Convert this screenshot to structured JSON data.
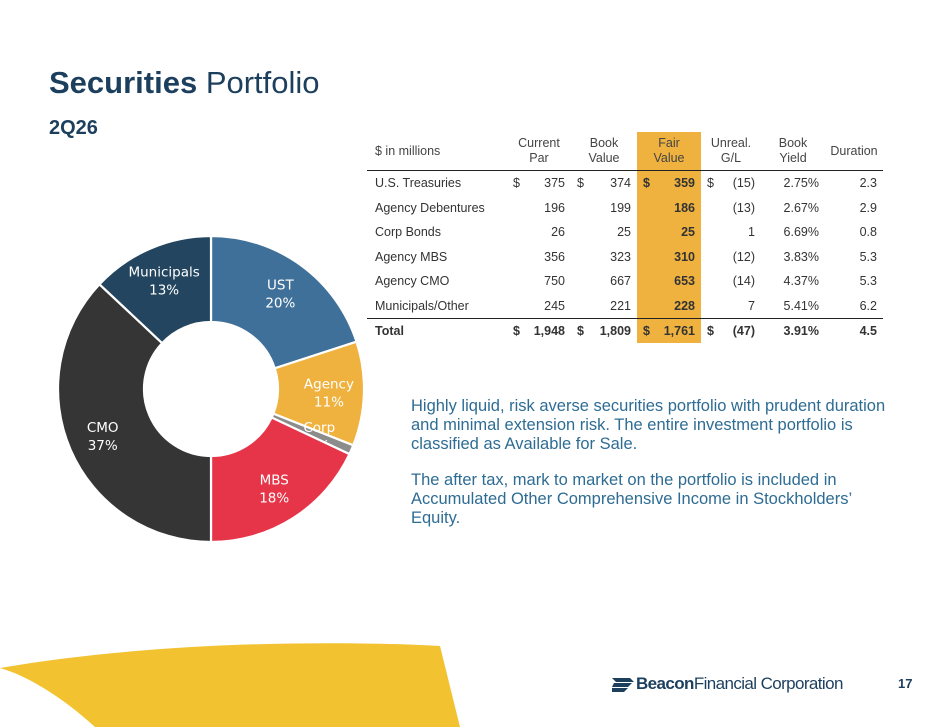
{
  "title": {
    "bold": "Securities",
    "rest": " Portfolio"
  },
  "subtitle": "2Q26",
  "chart_data": {
    "type": "pie",
    "categories": [
      "UST",
      "Agency",
      "Corp",
      "MBS",
      "CMO",
      "Municipals"
    ],
    "values": [
      20,
      11,
      1,
      18,
      37,
      13
    ],
    "labels": [
      "20%",
      "11%",
      "1%",
      "18%",
      "37%",
      "13%"
    ],
    "colors": [
      "#3f7099",
      "#efb23f",
      "#8c8c8c",
      "#e63548",
      "#353535",
      "#23455f"
    ]
  },
  "table": {
    "headers": {
      "name": "$ in millions",
      "current_par": [
        "Current",
        "Par"
      ],
      "book_value": [
        "Book",
        "Value"
      ],
      "fair_value": [
        "Fair",
        "Value"
      ],
      "unreal_gl": [
        "Unreal.",
        "G/L"
      ],
      "book_yield": [
        "Book",
        "Yield"
      ],
      "duration": "Duration"
    },
    "rows": [
      {
        "name": "U.S. Treasuries",
        "par": "375",
        "book": "374",
        "fair": "359",
        "gl": "(15)",
        "yield": "2.75%",
        "duration": "2.3",
        "dollar": "$"
      },
      {
        "name": "Agency Debentures",
        "par": "196",
        "book": "199",
        "fair": "186",
        "gl": "(13)",
        "yield": "2.67%",
        "duration": "2.9",
        "dollar": ""
      },
      {
        "name": "Corp Bonds",
        "par": "26",
        "book": "25",
        "fair": "25",
        "gl": "1",
        "yield": "6.69%",
        "duration": "0.8",
        "dollar": ""
      },
      {
        "name": "Agency MBS",
        "par": "356",
        "book": "323",
        "fair": "310",
        "gl": "(12)",
        "yield": "3.83%",
        "duration": "5.3",
        "dollar": ""
      },
      {
        "name": "Agency CMO",
        "par": "750",
        "book": "667",
        "fair": "653",
        "gl": "(14)",
        "yield": "4.37%",
        "duration": "5.3",
        "dollar": ""
      },
      {
        "name": "Municipals/Other",
        "par": "245",
        "book": "221",
        "fair": "228",
        "gl": "7",
        "yield": "5.41%",
        "duration": "6.2",
        "dollar": ""
      }
    ],
    "total": {
      "name": "Total",
      "par": "1,948",
      "book": "1,809",
      "fair": "1,761",
      "gl": "(47)",
      "yield": "3.91%",
      "duration": "4.5",
      "dollar": "$"
    }
  },
  "paragraph1": "Highly liquid, risk averse securities portfolio with prudent duration and minimal extension risk.  The entire investment portfolio is classified as Available for Sale.",
  "paragraph2": "The after tax, mark to market on the portfolio is included in Accumulated Other Comprehensive Income in Stockholders’ Equity.",
  "logo": {
    "bold": "Beacon",
    "rest": "Financial Corporation"
  },
  "page_number": "17"
}
